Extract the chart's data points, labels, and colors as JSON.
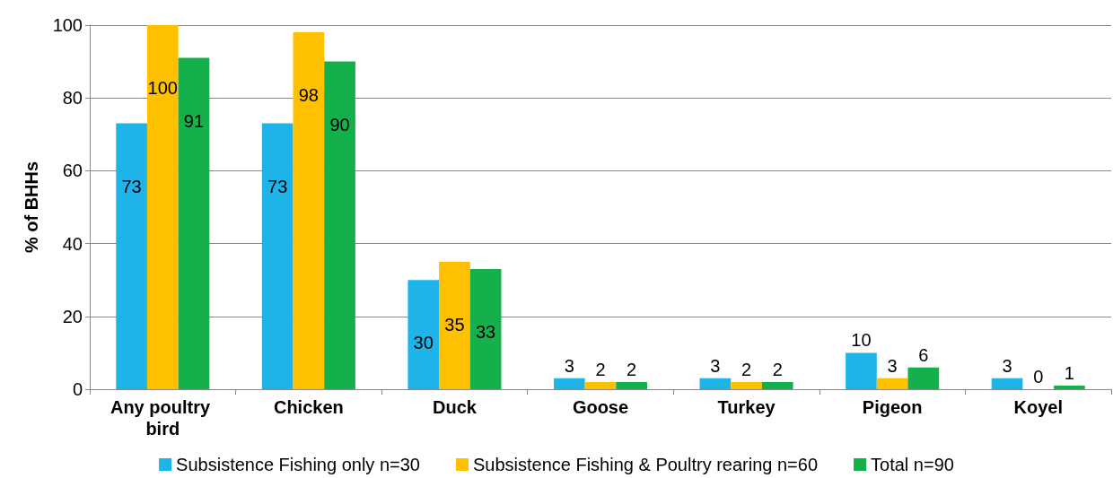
{
  "chart_data": {
    "type": "bar",
    "ylabel": "% of BHHs",
    "categories": [
      "Any poultry bird",
      "Chicken",
      "Duck",
      "Goose",
      "Turkey",
      "Pigeon",
      "Koyel"
    ],
    "series": [
      {
        "name": "Subsistence Fishing only n=30",
        "color": "#1eb4ea",
        "values": [
          73,
          73,
          30,
          3,
          3,
          10,
          3
        ]
      },
      {
        "name": "Subsistence Fishing & Poultry rearing n=60",
        "color": "#ffc000",
        "values": [
          100,
          98,
          35,
          2,
          2,
          3,
          0
        ]
      },
      {
        "name": "Total n=90",
        "color": "#14b04c",
        "values": [
          91,
          90,
          33,
          2,
          2,
          6,
          1
        ]
      }
    ],
    "ylim": [
      0,
      100
    ],
    "yticks": [
      0,
      20,
      40,
      60,
      80,
      100
    ],
    "grid": "y",
    "legend": "bottom",
    "data_labels": true
  }
}
